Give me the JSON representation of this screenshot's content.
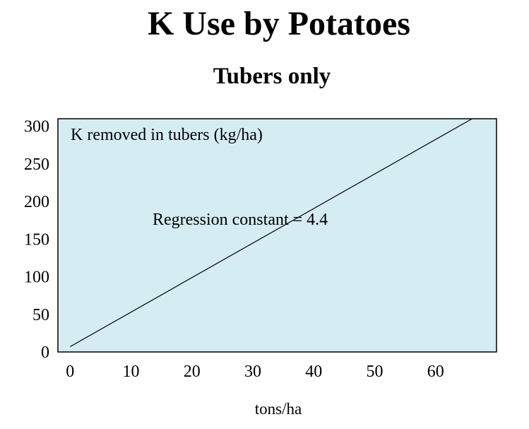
{
  "chart_data": {
    "type": "line",
    "title": "K Use by Potatoes",
    "subtitle": "Tubers only",
    "xlabel": "tons/ha",
    "ylabel": "",
    "xlim": [
      -2,
      70
    ],
    "ylim": [
      0,
      310
    ],
    "x_ticks": [
      "0",
      "10",
      "20",
      "30",
      "40",
      "50",
      "60"
    ],
    "y_ticks": [
      "0",
      "50",
      "100",
      "150",
      "200",
      "250",
      "300"
    ],
    "series": [
      {
        "name": "K removed in tubers (kg/ha)",
        "color": "#000000",
        "x": [
          0,
          66
        ],
        "y": [
          7,
          310
        ]
      }
    ],
    "annotation": "Regression constant = 4.4",
    "plot_background": "#d5ecf3",
    "grid": false
  }
}
